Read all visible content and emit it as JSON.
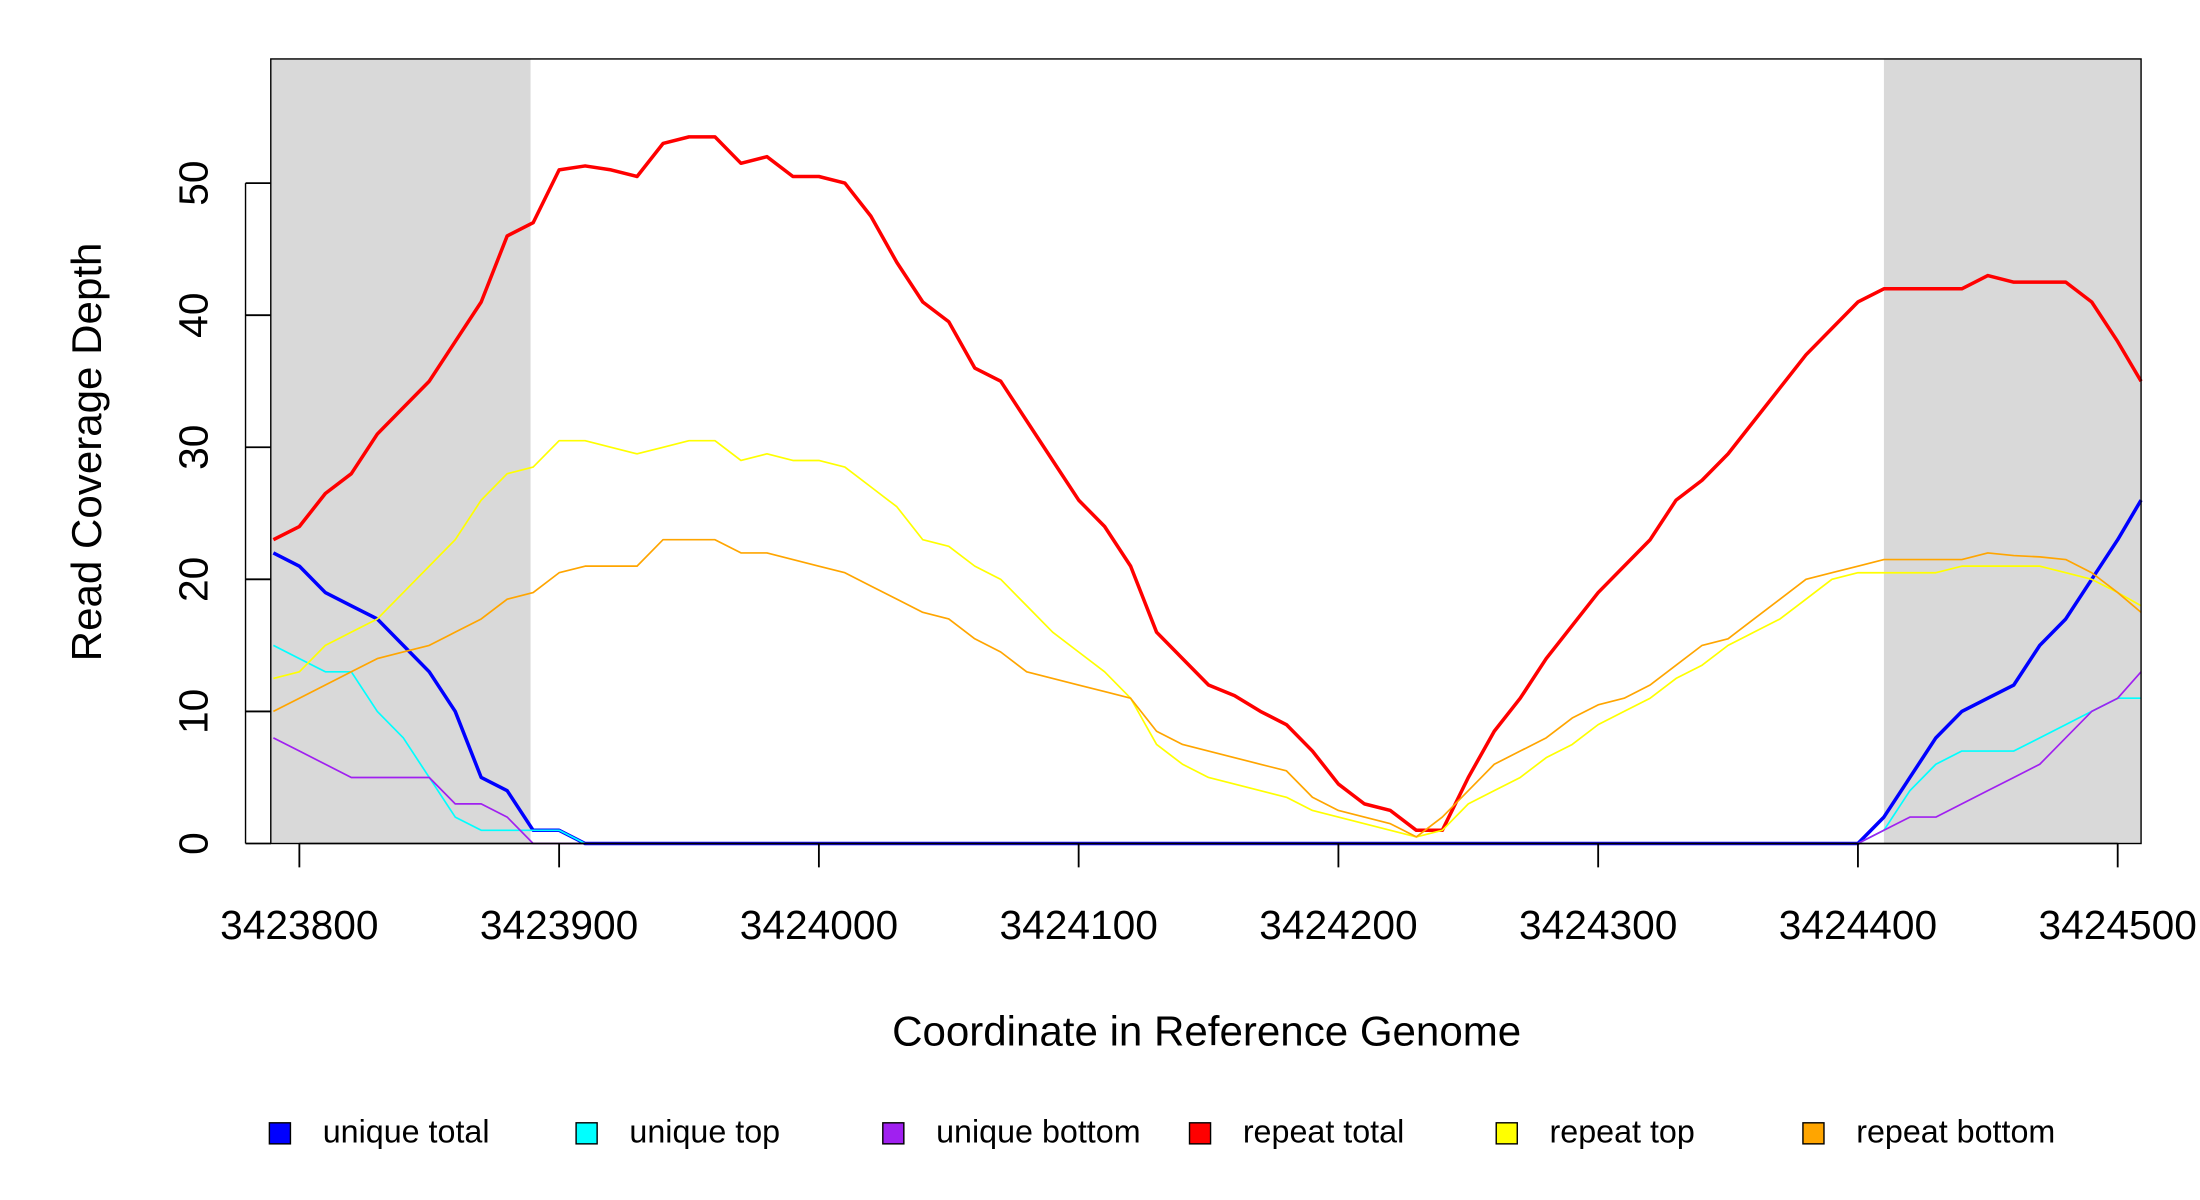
{
  "chart_data": {
    "type": "line",
    "xlabel": "Coordinate in Reference Genome",
    "ylabel": "Read Coverage Depth",
    "xlim": [
      3423789,
      3424509
    ],
    "ylim": [
      0,
      59.4
    ],
    "xticks": [
      3423800,
      3423900,
      3424000,
      3424100,
      3424200,
      3424300,
      3424400,
      3424500
    ],
    "yticks": [
      0,
      10,
      20,
      30,
      40,
      50
    ],
    "shaded_regions": [
      [
        3423789,
        3423889
      ],
      [
        3424410,
        3424509
      ]
    ],
    "shade_color": "#d9d9d9",
    "legend": "bottom",
    "x": [
      3423790,
      3423800,
      3423810,
      3423820,
      3423830,
      3423840,
      3423850,
      3423860,
      3423870,
      3423880,
      3423890,
      3423900,
      3423910,
      3423920,
      3423930,
      3423940,
      3423950,
      3423960,
      3423970,
      3423980,
      3423990,
      3424000,
      3424010,
      3424020,
      3424030,
      3424040,
      3424050,
      3424060,
      3424070,
      3424080,
      3424090,
      3424100,
      3424110,
      3424120,
      3424130,
      3424140,
      3424150,
      3424160,
      3424170,
      3424180,
      3424190,
      3424200,
      3424210,
      3424220,
      3424230,
      3424240,
      3424250,
      3424260,
      3424270,
      3424280,
      3424290,
      3424300,
      3424310,
      3424320,
      3424330,
      3424340,
      3424350,
      3424360,
      3424370,
      3424380,
      3424390,
      3424400,
      3424410,
      3424420,
      3424430,
      3424440,
      3424450,
      3424460,
      3424470,
      3424480,
      3424490,
      3424500,
      3424509
    ],
    "series": [
      {
        "name": "unique total",
        "color": "#0000ff",
        "linewidth": 2.5,
        "values": [
          22,
          21,
          19,
          18,
          17,
          15,
          13,
          10,
          5,
          4,
          1,
          1,
          0,
          0,
          0,
          0,
          0,
          0,
          0,
          0,
          0,
          0,
          0,
          0,
          0,
          0,
          0,
          0,
          0,
          0,
          0,
          0,
          0,
          0,
          0,
          0,
          0,
          0,
          0,
          0,
          0,
          0,
          0,
          0,
          0,
          0,
          0,
          0,
          0,
          0,
          0,
          0,
          0,
          0,
          0,
          0,
          0,
          0,
          0,
          0,
          0,
          0,
          2,
          5,
          8,
          10,
          11,
          12,
          15,
          17,
          20,
          23,
          26
        ]
      },
      {
        "name": "unique top",
        "color": "#00ffff",
        "linewidth": 1.2,
        "values": [
          15,
          14,
          13,
          13,
          10,
          8,
          5,
          2,
          1,
          1,
          1,
          1,
          0,
          0,
          0,
          0,
          0,
          0,
          0,
          0,
          0,
          0,
          0,
          0,
          0,
          0,
          0,
          0,
          0,
          0,
          0,
          0,
          0,
          0,
          0,
          0,
          0,
          0,
          0,
          0,
          0,
          0,
          0,
          0,
          0,
          0,
          0,
          0,
          0,
          0,
          0,
          0,
          0,
          0,
          0,
          0,
          0,
          0,
          0,
          0,
          0,
          0,
          1,
          4,
          6,
          7,
          7,
          7,
          8,
          9,
          10,
          11,
          11
        ]
      },
      {
        "name": "unique bottom",
        "color": "#a020f0",
        "linewidth": 1.2,
        "values": [
          8,
          7,
          6,
          5,
          5,
          5,
          5,
          3,
          3,
          2,
          0,
          0,
          0,
          0,
          0,
          0,
          0,
          0,
          0,
          0,
          0,
          0,
          0,
          0,
          0,
          0,
          0,
          0,
          0,
          0,
          0,
          0,
          0,
          0,
          0,
          0,
          0,
          0,
          0,
          0,
          0,
          0,
          0,
          0,
          0,
          0,
          0,
          0,
          0,
          0,
          0,
          0,
          0,
          0,
          0,
          0,
          0,
          0,
          0,
          0,
          0,
          0,
          1,
          2,
          2,
          3,
          4,
          5,
          6,
          8,
          10,
          11,
          13
        ]
      },
      {
        "name": "repeat total",
        "color": "#ff0000",
        "linewidth": 2.5,
        "values": [
          23,
          24,
          26.5,
          28,
          31,
          33,
          35,
          38,
          41,
          46,
          47,
          51,
          51.3,
          51,
          50.5,
          53,
          53.5,
          53.5,
          51.5,
          52,
          50.5,
          50.5,
          50,
          47.5,
          44,
          41,
          39.5,
          36,
          35,
          32,
          29,
          26,
          24,
          21,
          16,
          14,
          12,
          11.2,
          10,
          9,
          7,
          4.5,
          3,
          2.5,
          1,
          1,
          5,
          8.5,
          11,
          14,
          16.5,
          19,
          21,
          23,
          26,
          27.5,
          29.5,
          32,
          34.5,
          37,
          39,
          41,
          42,
          42,
          42,
          42,
          43,
          42.5,
          42.5,
          42.5,
          41,
          38,
          35
        ]
      },
      {
        "name": "repeat top",
        "color": "#ffff00",
        "linewidth": 1.2,
        "values": [
          12.5,
          13,
          15,
          16,
          17,
          19,
          21,
          23,
          26,
          28,
          28.5,
          30.5,
          30.5,
          30,
          29.5,
          30,
          30.5,
          30.5,
          29,
          29.5,
          29,
          29,
          28.5,
          27,
          25.5,
          23,
          22.5,
          21,
          20,
          18,
          16,
          14.5,
          13,
          11,
          7.5,
          6,
          5,
          4.5,
          4,
          3.5,
          2.5,
          2,
          1.5,
          1,
          0.5,
          1,
          3,
          4,
          5,
          6.5,
          7.5,
          9,
          10,
          11,
          12.5,
          13.5,
          15,
          16,
          17,
          18.5,
          20,
          20.5,
          20.5,
          20.5,
          20.5,
          21,
          21,
          21,
          21,
          20.5,
          20,
          19,
          18
        ]
      },
      {
        "name": "repeat bottom",
        "color": "#ffa500",
        "linewidth": 1.2,
        "values": [
          10,
          11,
          12,
          13,
          14,
          14.5,
          15,
          16,
          17,
          18.5,
          19,
          20.5,
          21,
          21,
          21,
          23,
          23,
          23,
          22,
          22,
          21.5,
          21,
          20.5,
          19.5,
          18.5,
          17.5,
          17,
          15.5,
          14.5,
          13,
          12.5,
          12,
          11.5,
          11,
          8.5,
          7.5,
          7,
          6.5,
          6,
          5.5,
          3.5,
          2.5,
          2,
          1.5,
          0.5,
          2,
          4,
          6,
          7,
          8,
          9.5,
          10.5,
          11,
          12,
          13.5,
          15,
          15.5,
          17,
          18.5,
          20,
          20.5,
          21,
          21.5,
          21.5,
          21.5,
          21.5,
          22,
          21.8,
          21.7,
          21.5,
          20.5,
          19,
          17.5
        ]
      }
    ]
  }
}
